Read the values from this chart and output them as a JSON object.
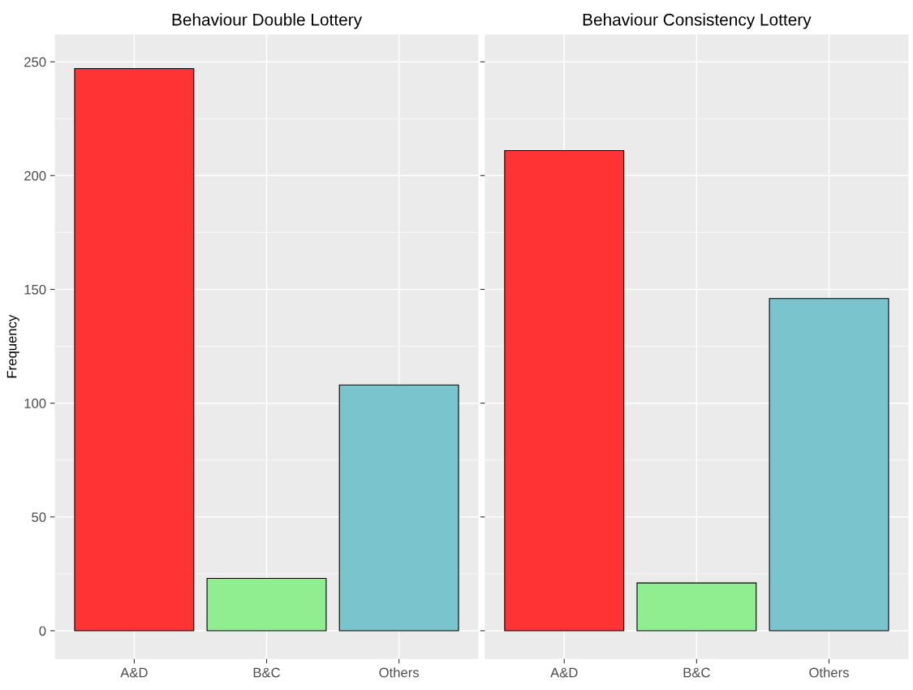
{
  "chart_data": [
    {
      "type": "bar",
      "title": "Behaviour Double Lottery",
      "ylabel": "Frequency",
      "categories": [
        "A&D",
        "B&C",
        "Others"
      ],
      "values": [
        247,
        23,
        108
      ],
      "colors": [
        "#ff3333",
        "#90ee90",
        "#7ac5cd"
      ],
      "ylim": [
        -12.4,
        262
      ],
      "yticks": [
        0,
        50,
        100,
        150,
        200,
        250
      ],
      "grid": true
    },
    {
      "type": "bar",
      "title": "Behaviour Consistency Lottery",
      "categories": [
        "A&D",
        "B&C",
        "Others"
      ],
      "values": [
        211,
        21,
        146
      ],
      "colors": [
        "#ff3333",
        "#90ee90",
        "#7ac5cd"
      ],
      "ylim": [
        -12.4,
        262
      ],
      "yticks": [
        0,
        50,
        100,
        150,
        200,
        250
      ],
      "grid": true,
      "tick_labels": "x"
    }
  ]
}
